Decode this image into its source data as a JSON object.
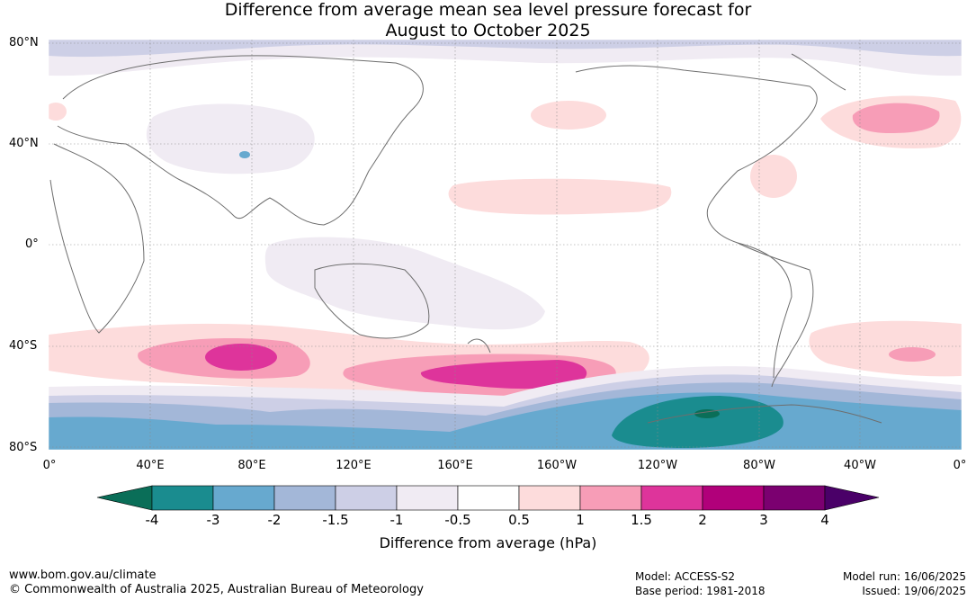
{
  "title_line1": "Difference from average mean sea level pressure forecast for",
  "title_line2": "August to October 2025",
  "latitude_labels": [
    "80°N",
    "40°N",
    "0°",
    "40°S",
    "80°S"
  ],
  "longitude_labels": [
    "0°",
    "40°E",
    "80°E",
    "120°E",
    "160°E",
    "160°W",
    "120°W",
    "80°W",
    "40°W",
    "0°"
  ],
  "colorbar": {
    "ticks": [
      "-4",
      "-3",
      "-2",
      "-1.5",
      "-1",
      "-0.5",
      "0.5",
      "1",
      "1.5",
      "2",
      "3",
      "4"
    ],
    "colors": [
      "#1a8c8f",
      "#67a9cf",
      "#a3b7d8",
      "#cdcfe6",
      "#f0ebf3",
      "#ffffff",
      "#fddcdc",
      "#f79db7",
      "#de349b",
      "#b1007a",
      "#7b0070"
    ],
    "under_color": "#0a6e58",
    "over_color": "#4a0068",
    "label": "Difference from average (hPa)"
  },
  "footer": {
    "url": "www.bom.gov.au/climate",
    "copyright": "© Commonwealth of Australia 2025, Australian Bureau of Meteorology",
    "model": "Model: ACCESS-S2",
    "base_period": "Base period: 1981-2018",
    "model_run": "Model run: 16/06/2025",
    "issued": "Issued: 19/06/2025"
  }
}
